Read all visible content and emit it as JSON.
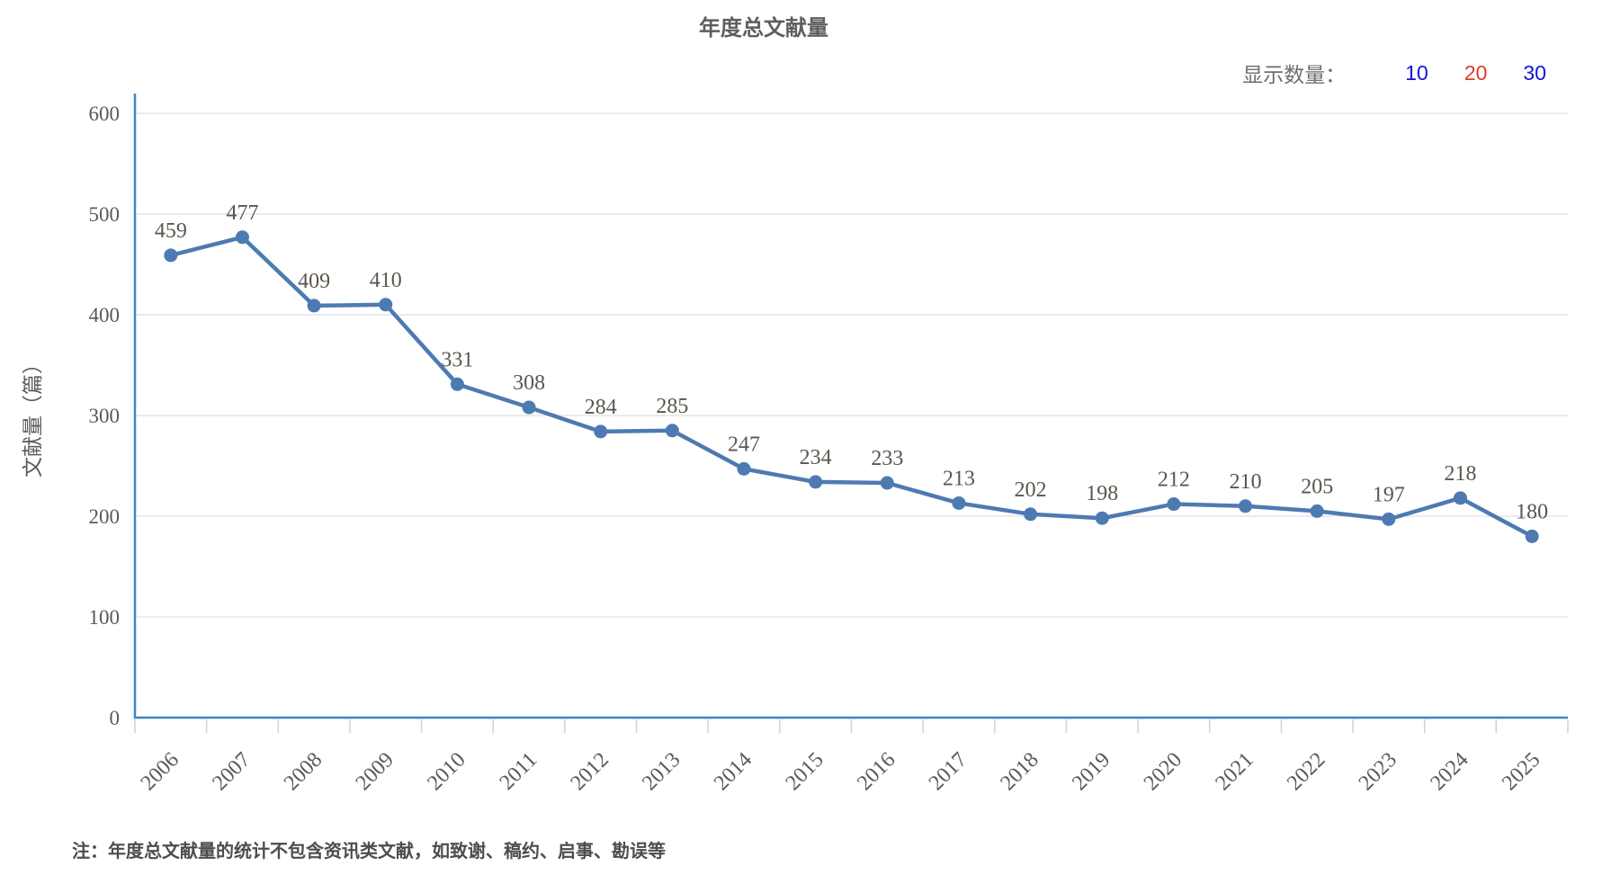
{
  "title": "年度总文献量",
  "display_count": {
    "label": "显示数量：",
    "options": [
      {
        "label": "10",
        "color": "#1414d6",
        "active": false
      },
      {
        "label": "20",
        "color": "#e03a2e",
        "active": true
      },
      {
        "label": "30",
        "color": "#1414d6",
        "active": false
      }
    ]
  },
  "chart_data": {
    "type": "line",
    "x": [
      "2006",
      "2007",
      "2008",
      "2009",
      "2010",
      "2011",
      "2012",
      "2013",
      "2014",
      "2015",
      "2016",
      "2017",
      "2018",
      "2019",
      "2020",
      "2021",
      "2022",
      "2023",
      "2024",
      "2025"
    ],
    "series": [
      {
        "name": "年度总文献量",
        "values": [
          459,
          477,
          409,
          410,
          331,
          308,
          284,
          285,
          247,
          234,
          233,
          213,
          202,
          198,
          212,
          210,
          205,
          197,
          218,
          180
        ]
      }
    ],
    "title": "年度总文献量",
    "xlabel": "",
    "ylabel": "文献量（篇）",
    "ylim": [
      0,
      600
    ],
    "ytick_interval": 100,
    "grid": true,
    "legend": "none",
    "line_color": "#4e7ab2",
    "point_color": "#4e7ab2",
    "axis_color": "#3e86c3",
    "grid_color": "#d9d9d9",
    "tick_color": "#c9d3e3",
    "value_label_color": "#5b554d",
    "axis_label_color": "#595959"
  },
  "note": "注：年度总文献量的统计不包含资讯类文献，如致谢、稿约、启事、勘误等"
}
